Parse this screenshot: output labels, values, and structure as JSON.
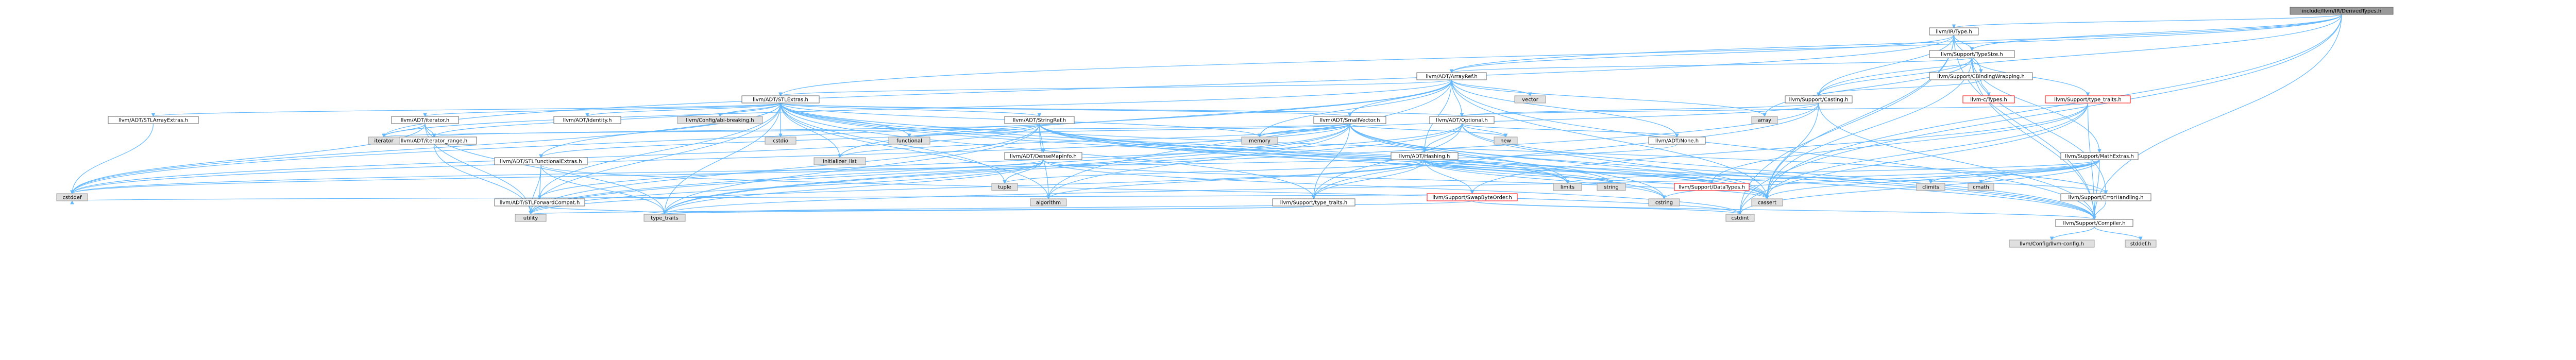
{
  "root": "include/llvm/IR/DerivedTypes.h",
  "colors": {
    "root_fill": "#999999",
    "node_fill": "#ffffff",
    "node_border": "#666666",
    "missing_border": "#ff0000",
    "system_fill": "#e0e0e0",
    "system_border": "#999999",
    "edge": "#63b8ff"
  },
  "nodes": [
    {
      "id": "root",
      "label": "include/llvm/IR/DerivedTypes.h",
      "kind": "root"
    },
    {
      "id": "irtype",
      "label": "llvm/IR/Type.h",
      "kind": "file"
    },
    {
      "id": "typesize",
      "label": "llvm/Support/TypeSize.h",
      "kind": "file"
    },
    {
      "id": "arrayref",
      "label": "llvm/ADT/ArrayRef.h",
      "kind": "file"
    },
    {
      "id": "stlextras",
      "label": "llvm/ADT/STLExtras.h",
      "kind": "file"
    },
    {
      "id": "cbinding",
      "label": "llvm/Support/CBindingWrapping.h",
      "kind": "file"
    },
    {
      "id": "casting",
      "label": "llvm/Support/Casting.h",
      "kind": "file"
    },
    {
      "id": "typename",
      "label": "llvm/Support/type_traits.h",
      "kind": "missing"
    },
    {
      "id": "ctypes",
      "label": "llvm-c/Types.h",
      "kind": "missing"
    },
    {
      "id": "vector",
      "label": "vector",
      "kind": "system"
    },
    {
      "id": "array",
      "label": "array",
      "kind": "system"
    },
    {
      "id": "stlarray",
      "label": "llvm/ADT/STLArrayExtras.h",
      "kind": "file"
    },
    {
      "id": "iterator",
      "label": "llvm/ADT/iterator.h",
      "kind": "file"
    },
    {
      "id": "identity",
      "label": "llvm/ADT/identity.h",
      "kind": "file"
    },
    {
      "id": "abibreak",
      "label": "llvm/Config/abi-breaking.h",
      "kind": "system"
    },
    {
      "id": "cstdio",
      "label": "cstdio",
      "kind": "system"
    },
    {
      "id": "stringref",
      "label": "llvm/ADT/StringRef.h",
      "kind": "file"
    },
    {
      "id": "smallvec",
      "label": "llvm/ADT/SmallVector.h",
      "kind": "file"
    },
    {
      "id": "optional",
      "label": "llvm/ADT/Optional.h",
      "kind": "file"
    },
    {
      "id": "iterrange",
      "label": "llvm/ADT/iterator_range.h",
      "kind": "file"
    },
    {
      "id": "stlfunc",
      "label": "llvm/ADT/STLFunctionalExtras.h",
      "kind": "file"
    },
    {
      "id": "densemapinfo",
      "label": "llvm/ADT/DenseMapInfo.h",
      "kind": "file"
    },
    {
      "id": "hashing",
      "label": "llvm/ADT/Hashing.h",
      "kind": "file"
    },
    {
      "id": "none",
      "label": "llvm/ADT/None.h",
      "kind": "file"
    },
    {
      "id": "mathextras",
      "label": "llvm/Support/MathExtras.h",
      "kind": "file"
    },
    {
      "id": "iteratorsys",
      "label": "iterator",
      "kind": "system"
    },
    {
      "id": "initlist",
      "label": "initializer_list",
      "kind": "system"
    },
    {
      "id": "functional",
      "label": "functional",
      "kind": "system"
    },
    {
      "id": "memory",
      "label": "memory",
      "kind": "system"
    },
    {
      "id": "new",
      "label": "new",
      "kind": "system"
    },
    {
      "id": "cstddef",
      "label": "cstddef",
      "kind": "system"
    },
    {
      "id": "stlfwd",
      "label": "llvm/ADT/STLForwardCompat.h",
      "kind": "file"
    },
    {
      "id": "algorithm",
      "label": "algorithm",
      "kind": "system"
    },
    {
      "id": "tuple",
      "label": "tuple",
      "kind": "system"
    },
    {
      "id": "limits",
      "label": "limits",
      "kind": "system"
    },
    {
      "id": "suptypetraits",
      "label": "llvm/Support/type_traits.h",
      "kind": "file"
    },
    {
      "id": "swapbyte",
      "label": "llvm/Support/SwapByteOrder.h",
      "kind": "missing"
    },
    {
      "id": "datatypes",
      "label": "llvm/Support/DataTypes.h",
      "kind": "missing"
    },
    {
      "id": "string",
      "label": "string",
      "kind": "system"
    },
    {
      "id": "cstring",
      "label": "cstring",
      "kind": "system"
    },
    {
      "id": "cassert",
      "label": "cassert",
      "kind": "system"
    },
    {
      "id": "climits",
      "label": "climits",
      "kind": "system"
    },
    {
      "id": "cmath",
      "label": "cmath",
      "kind": "system"
    },
    {
      "id": "errhandling",
      "label": "llvm/Support/ErrorHandling.h",
      "kind": "file"
    },
    {
      "id": "compiler",
      "label": "llvm/Support/Compiler.h",
      "kind": "file"
    },
    {
      "id": "cstdint",
      "label": "cstdint",
      "kind": "system"
    },
    {
      "id": "typetraits",
      "label": "type_traits",
      "kind": "system"
    },
    {
      "id": "utility",
      "label": "utility",
      "kind": "system"
    },
    {
      "id": "llvmconfig",
      "label": "llvm/Config/llvm-config.h",
      "kind": "system"
    },
    {
      "id": "stddef",
      "label": "stddef.h",
      "kind": "system"
    },
    {
      "id": "cstddef2",
      "label": "cstdint",
      "kind": "system"
    }
  ]
}
